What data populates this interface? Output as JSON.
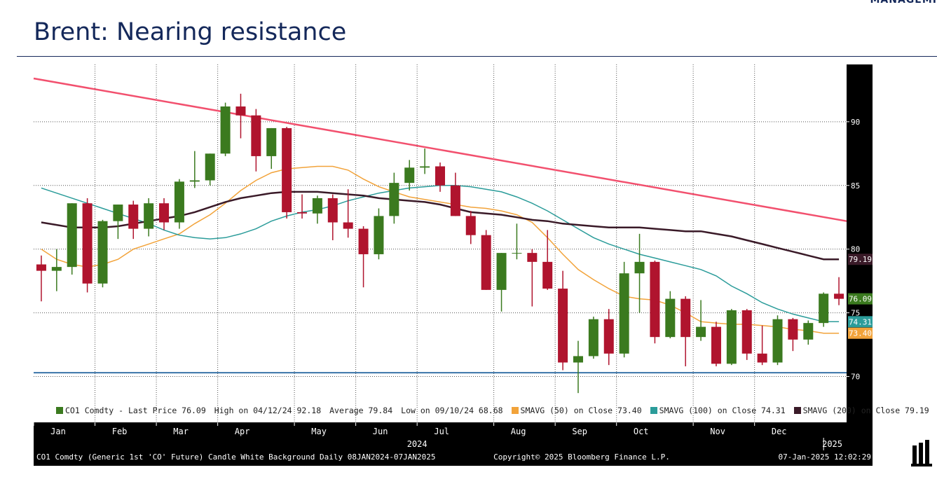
{
  "header": {
    "title": "Brent: Nearing resistance",
    "brand": "MANAGEMI"
  },
  "chart_data": {
    "type": "candlestick",
    "categories": [
      "Jan",
      null,
      null,
      null,
      "Feb",
      null,
      null,
      null,
      "Mar",
      null,
      null,
      null,
      "Apr",
      null,
      null,
      null,
      null,
      "May",
      null,
      null,
      null,
      "Jun",
      null,
      null,
      null,
      "Jul",
      null,
      null,
      null,
      null,
      "Aug",
      null,
      null,
      null,
      "Sep",
      null,
      null,
      null,
      "Oct",
      null,
      null,
      null,
      null,
      "Nov",
      null,
      null,
      null,
      "Dec",
      null,
      null,
      null,
      null,
      null
    ],
    "year_labels": [
      "2024",
      "2025"
    ],
    "candles": {
      "name": "CO1 Comdty - Last Price 76.09",
      "last_label": "76.09",
      "color_up": "#3b7a1f",
      "color_down": "#b0142e",
      "open": [
        78.8,
        78.3,
        78.6,
        83.6,
        77.3,
        82.2,
        83.5,
        81.6,
        83.6,
        82.1,
        85.3,
        85.4,
        87.5,
        91.2,
        90.5,
        87.3,
        89.5,
        82.9,
        82.8,
        84.0,
        82.1,
        81.6,
        79.6,
        82.6,
        85.2,
        86.4,
        86.5,
        85.0,
        82.6,
        81.1,
        76.8,
        79.7,
        79.7,
        79.0,
        76.9,
        71.1,
        71.6,
        74.5,
        71.8,
        78.1,
        79.0,
        73.1,
        76.1,
        73.1,
        73.9,
        71.0,
        75.2,
        71.8,
        71.1,
        74.5,
        72.9,
        74.2,
        76.5
      ],
      "high": [
        79.5,
        80.0,
        83.6,
        84.0,
        82.3,
        83.5,
        83.8,
        84.0,
        84.0,
        85.5,
        87.7,
        87.5,
        91.5,
        92.2,
        91.0,
        89.5,
        89.6,
        84.3,
        84.2,
        84.3,
        84.7,
        81.8,
        83.2,
        86.0,
        87.0,
        87.9,
        86.8,
        86.0,
        83.0,
        81.5,
        79.7,
        82.0,
        80.0,
        81.5,
        78.3,
        72.8,
        74.7,
        75.3,
        79.0,
        81.2,
        79.1,
        76.7,
        76.3,
        76.0,
        74.3,
        75.3,
        75.3,
        74.0,
        74.8,
        74.6,
        74.4,
        76.6,
        77.8
      ],
      "low": [
        75.9,
        76.7,
        78.0,
        76.6,
        77.0,
        80.8,
        80.8,
        81.0,
        81.5,
        81.6,
        84.8,
        85.0,
        87.3,
        88.7,
        86.1,
        86.3,
        82.4,
        82.4,
        82.0,
        80.7,
        80.9,
        77.0,
        79.2,
        82.0,
        84.6,
        85.9,
        84.5,
        82.6,
        80.4,
        76.8,
        75.1,
        79.2,
        75.5,
        76.8,
        70.5,
        68.7,
        71.4,
        70.9,
        71.5,
        75.0,
        72.6,
        73.0,
        70.8,
        72.8,
        70.8,
        70.9,
        71.3,
        70.9,
        70.9,
        72.0,
        72.5,
        73.9,
        75.6
      ],
      "close": [
        78.3,
        78.6,
        83.6,
        77.3,
        82.2,
        83.5,
        81.6,
        83.6,
        82.1,
        85.3,
        85.4,
        87.5,
        91.2,
        90.5,
        87.3,
        89.5,
        82.9,
        82.8,
        84.0,
        82.1,
        81.6,
        79.6,
        82.6,
        85.2,
        86.4,
        86.5,
        85.0,
        82.6,
        81.1,
        76.8,
        79.7,
        79.7,
        79.0,
        76.9,
        71.1,
        71.6,
        74.5,
        71.8,
        78.1,
        79.0,
        73.1,
        76.1,
        73.1,
        73.9,
        71.0,
        75.2,
        71.8,
        71.1,
        74.5,
        72.9,
        74.2,
        76.5,
        76.1
      ]
    },
    "series": [
      {
        "name": "SMAVG (50)  on Close 73.40",
        "last_label": "73.40",
        "color": "#f2a33a",
        "values": [
          80.0,
          79.2,
          78.8,
          78.6,
          78.8,
          79.2,
          80.0,
          80.4,
          80.8,
          81.2,
          82.0,
          82.7,
          83.6,
          84.6,
          85.4,
          86.0,
          86.3,
          86.4,
          86.5,
          86.5,
          86.2,
          85.5,
          84.9,
          84.5,
          84.1,
          83.9,
          83.7,
          83.5,
          83.3,
          83.2,
          83.0,
          82.7,
          82.1,
          80.9,
          79.6,
          78.4,
          77.6,
          76.9,
          76.3,
          76.1,
          76.0,
          75.6,
          75.0,
          74.3,
          74.2,
          74.1,
          74.1,
          74.0,
          73.9,
          73.7,
          73.6,
          73.4,
          73.4
        ]
      },
      {
        "name": "SMAVG (100)  on Close 74.31",
        "last_label": "74.31",
        "color": "#2b9c9a",
        "values": [
          84.8,
          84.4,
          84.0,
          83.6,
          83.2,
          82.8,
          82.4,
          82.0,
          81.5,
          81.1,
          80.9,
          80.8,
          80.9,
          81.2,
          81.6,
          82.2,
          82.6,
          82.9,
          83.1,
          83.4,
          83.8,
          84.1,
          84.4,
          84.6,
          84.8,
          84.9,
          85.0,
          85.0,
          84.9,
          84.7,
          84.5,
          84.1,
          83.6,
          83.0,
          82.3,
          81.6,
          80.9,
          80.4,
          80.0,
          79.6,
          79.3,
          79.0,
          78.7,
          78.4,
          77.9,
          77.1,
          76.5,
          75.8,
          75.3,
          74.9,
          74.6,
          74.3,
          74.3
        ]
      },
      {
        "name": "SMAVG (200)  on Close 79.19",
        "last_label": "79.19",
        "color": "#3a1a28",
        "values": [
          82.1,
          81.9,
          81.7,
          81.7,
          81.7,
          81.8,
          82.0,
          82.2,
          82.4,
          82.6,
          82.9,
          83.3,
          83.7,
          84.0,
          84.2,
          84.4,
          84.5,
          84.5,
          84.5,
          84.4,
          84.3,
          84.2,
          84.0,
          83.9,
          83.8,
          83.7,
          83.5,
          83.2,
          82.9,
          82.8,
          82.7,
          82.5,
          82.3,
          82.2,
          82.0,
          81.9,
          81.8,
          81.7,
          81.7,
          81.7,
          81.6,
          81.5,
          81.4,
          81.4,
          81.2,
          81.0,
          80.7,
          80.4,
          80.1,
          79.8,
          79.5,
          79.2,
          79.2
        ]
      }
    ],
    "stats": [
      "High on 04/12/24 92.18",
      "Average 79.84",
      "Low on 09/10/24 68.68"
    ],
    "resistance_line": {
      "start": 93.4,
      "end": 82.2,
      "color": "#f2506e"
    },
    "support_level": 70.3,
    "support_color": "#3a74a8",
    "ylim": [
      66.4,
      94.5
    ],
    "yticks": [
      70,
      75,
      80,
      85,
      90
    ],
    "grid": true
  },
  "footer": {
    "left": "CO1 Comdty (Generic 1st 'CO' Future) Candle White Background  Daily 08JAN2024-07JAN2025",
    "center": "Copyright© 2025 Bloomberg Finance L.P.",
    "right": "07-Jan-2025 12:02:29"
  }
}
